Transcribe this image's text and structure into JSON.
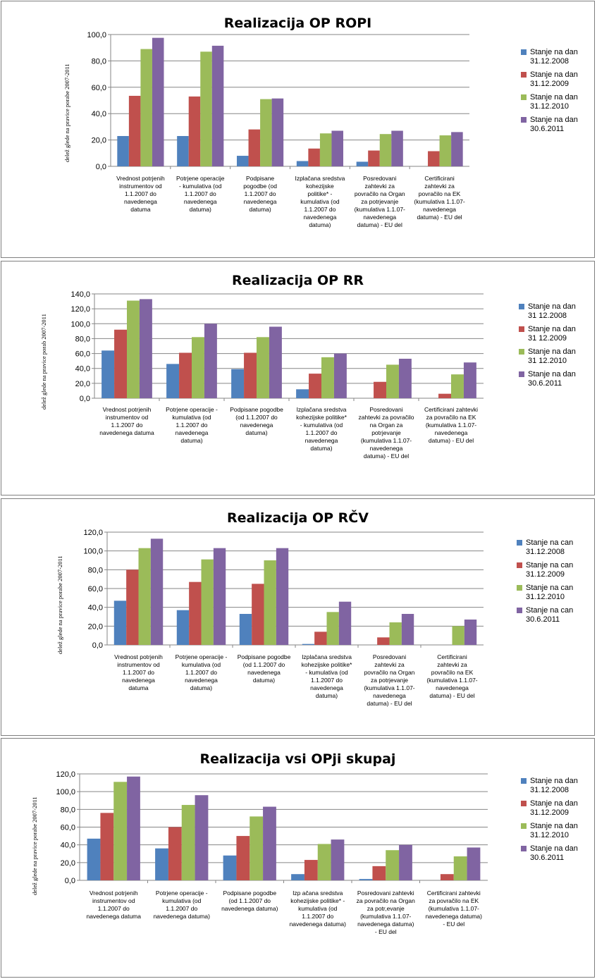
{
  "colors": [
    "#4f81bd",
    "#c0504d",
    "#9bbb59",
    "#8064a2"
  ],
  "chart_data": [
    {
      "type": "bar",
      "title": "Realizacija OP ROPI",
      "ylabel": "delež glede na pravice porabe 2007-2011",
      "ylim": [
        0,
        100
      ],
      "yticks": [
        "100,0",
        "80,0",
        "60,0",
        "40,0",
        "20,0",
        "0,0"
      ],
      "tick_values": [
        100,
        80,
        60,
        40,
        20,
        0
      ],
      "categories": [
        "Vrednost potrjenih\ninstrumentov od\n1.1.2007 do\nnavedenega\ndatuma",
        "Potrjene operacije\n- kumulativa (od\n1.1.2007 do\nnavedenega\ndatuma)",
        "Podpisane\npogodbe (od\n1.1.2007 do\nnavedenega\ndatuma)",
        "Izplačana sredstva\nkohezijske\npolitike* -\nkumulativa (od\n1.1.2007 do\nnavedenega\ndatuma)",
        "Posredovani\nzahtevki za\npovračilo na Organ\nza potrjevanje\n(kumulativa 1.1.07-\nnavedenega\ndatuma) - EU del",
        "Certificirani\nzahtevki za\npovračilo na EK\n(kumulativa 1.1.07-\nnavedenega\ndatuma) - EU del"
      ],
      "series": [
        {
          "name": "Stanje na dan\n31.12.2008",
          "values": [
            23,
            23,
            8,
            4,
            3.5,
            0
          ]
        },
        {
          "name": "Stanje na dan\n31.12.2009",
          "values": [
            53.5,
            53,
            28,
            13.5,
            12,
            11.5
          ]
        },
        {
          "name": "Stanje na dan\n31.12.2010",
          "values": [
            89,
            87,
            51,
            25,
            24.5,
            23.5
          ]
        },
        {
          "name": "Stanje na dan\n30.6.2011",
          "values": [
            97.5,
            91.5,
            51.5,
            27,
            27,
            26
          ]
        }
      ],
      "legend": "right"
    },
    {
      "type": "bar",
      "title": "Realizacija OP RR",
      "ylabel": "delež glede na pravice porab 2007-2011",
      "ylim": [
        0,
        140
      ],
      "yticks": [
        "140,0",
        "120,0",
        "100,0",
        "80,0",
        "60,0",
        "40,0",
        "20,0",
        "0,0"
      ],
      "tick_values": [
        140,
        120,
        100,
        80,
        60,
        40,
        20,
        0
      ],
      "categories": [
        "Vrednost potrjenih\ninstrumentov od\n1.1.2007 do\nnavedenega datuma",
        "Potrjene operacije -\nkumulativa (od\n1.1.2007 do\nnavedenega\ndatuma)",
        "Podpisane pogodbe\n(od 1.1.2007 do\nnavedenega\ndatuma)",
        "Izplačana sredstva\nkohezijske politike*\n- kumulativa (od\n1.1.2007 do\nnavedenega\ndatuma)",
        "Posredovani\nzahtevki za povračilo\nna Organ za\npotrjevanje\n(kumulativa 1.1.07-\nnavedenega\ndatuma) - EU del",
        "Certificirani zahtevki\nza povračilo na EK\n(kumulativa 1.1.07-\nnavedenega\ndatuma) - EU del"
      ],
      "series": [
        {
          "name": "Stanje na dan\n31 12.2008",
          "values": [
            64,
            46,
            39,
            12,
            0,
            0
          ]
        },
        {
          "name": "Stanje na dan\n31 12.2009",
          "values": [
            92,
            61,
            61,
            33,
            22,
            6
          ]
        },
        {
          "name": "Stanje na dan\n31 12.2010",
          "values": [
            131,
            82,
            82,
            55,
            45,
            32
          ]
        },
        {
          "name": "Stanje na dan\n30.6.2011",
          "values": [
            133,
            100,
            96,
            60,
            53,
            48
          ]
        }
      ],
      "legend": "right"
    },
    {
      "type": "bar",
      "title": "Realizacija OP RČV",
      "ylabel": "delež glede na pravice porabe 2007-2011",
      "ylim": [
        0,
        120
      ],
      "yticks": [
        "120,0",
        "100,0",
        "80,0",
        "60,0",
        "40,0",
        "20,0",
        "0,0"
      ],
      "tick_values": [
        120,
        100,
        80,
        60,
        40,
        20,
        0
      ],
      "categories": [
        "Vrednost potrjenih\ninstrumentov od\n1.1.2007 do\nnavedenega\ndatuma",
        "Potrjene operacije -\nkumulativa (od\n1.1.2007 do\nnavedenega\ndatuma)",
        "Podpisane pogodbe\n(od 1.1.2007 do\nnavedenega\ndatuma)",
        "Izplačana sredstva\nkohezijske politike*\n- kumulativa (od\n1.1.2007 do\nnavedenega\ndatuma)",
        "Posredovani\nzahtevki za\npovračilo na Organ\nza potrjevanje\n(kumulativa 1.1.07-\nnavedenega\ndatuma) - EU del",
        "Certificirani\nzahtevki za\npovračilo na EK\n(kumulativa 1.1.07-\nnavedenega\ndatuma) - EU del"
      ],
      "series": [
        {
          "name": "Stanje na can\n31.12.2008",
          "values": [
            47,
            37,
            33,
            1,
            0,
            0
          ]
        },
        {
          "name": "Stanje na can\n31.12.2009",
          "values": [
            80,
            67,
            65,
            14,
            8,
            0
          ]
        },
        {
          "name": "Stanje na can\n31.12.2010",
          "values": [
            103,
            91,
            90,
            35,
            24,
            20
          ]
        },
        {
          "name": "Stanje na can\n30.6.2011",
          "values": [
            113,
            103,
            103,
            46,
            33,
            27
          ]
        }
      ],
      "legend": "right"
    },
    {
      "type": "bar",
      "title": "Realizacija vsi OPji skupaj",
      "ylabel": "delež glede na pravice porabe 2007-2011",
      "ylim": [
        0,
        120
      ],
      "yticks": [
        "120,0",
        "100,0",
        "80,0",
        "60,0",
        "40,0",
        "20,0",
        "0,0"
      ],
      "tick_values": [
        120,
        100,
        80,
        60,
        40,
        20,
        0
      ],
      "categories": [
        "Vrednost potrjenih\ninstrumentov od\n1.1.2007 do\nnavedenega datuma",
        "Potrjene operacije -\nkumulativa (od\n1.1.2007 do\nnavedenega datuma)",
        "Podpisane pogodbe\n(od 1.1.2007 do\nnavedenega datuma)",
        "Izp ačana sredstva\nkohezijske politike* -\nkumulativa (od\n1.1.2007 do\nnavedenega datuma)",
        "Posredovani zahtevki\nza povračilo na Organ\nza potr,evanje\n(kumulativa 1.1.07-\nnavedenega datuma)\n- EU del",
        "Certificirani zahtevki\nza povračilo na EK\n(kumulativa 1.1.07-\nnavedenega datuma)\n- EU del"
      ],
      "series": [
        {
          "name": "Stanje na dan\n31.12.2008",
          "values": [
            47,
            36,
            28,
            7,
            1.5,
            0
          ]
        },
        {
          "name": "Stanje na dan\n31.12.2009",
          "values": [
            76,
            60,
            50,
            23,
            16,
            7
          ]
        },
        {
          "name": "Stanje na dan\n31.12.2010",
          "values": [
            111,
            85,
            72,
            41,
            34,
            27
          ]
        },
        {
          "name": "Stanje na dan\n30.6.2011",
          "values": [
            117,
            96,
            83,
            46,
            40,
            37
          ]
        }
      ],
      "legend": "right"
    }
  ]
}
